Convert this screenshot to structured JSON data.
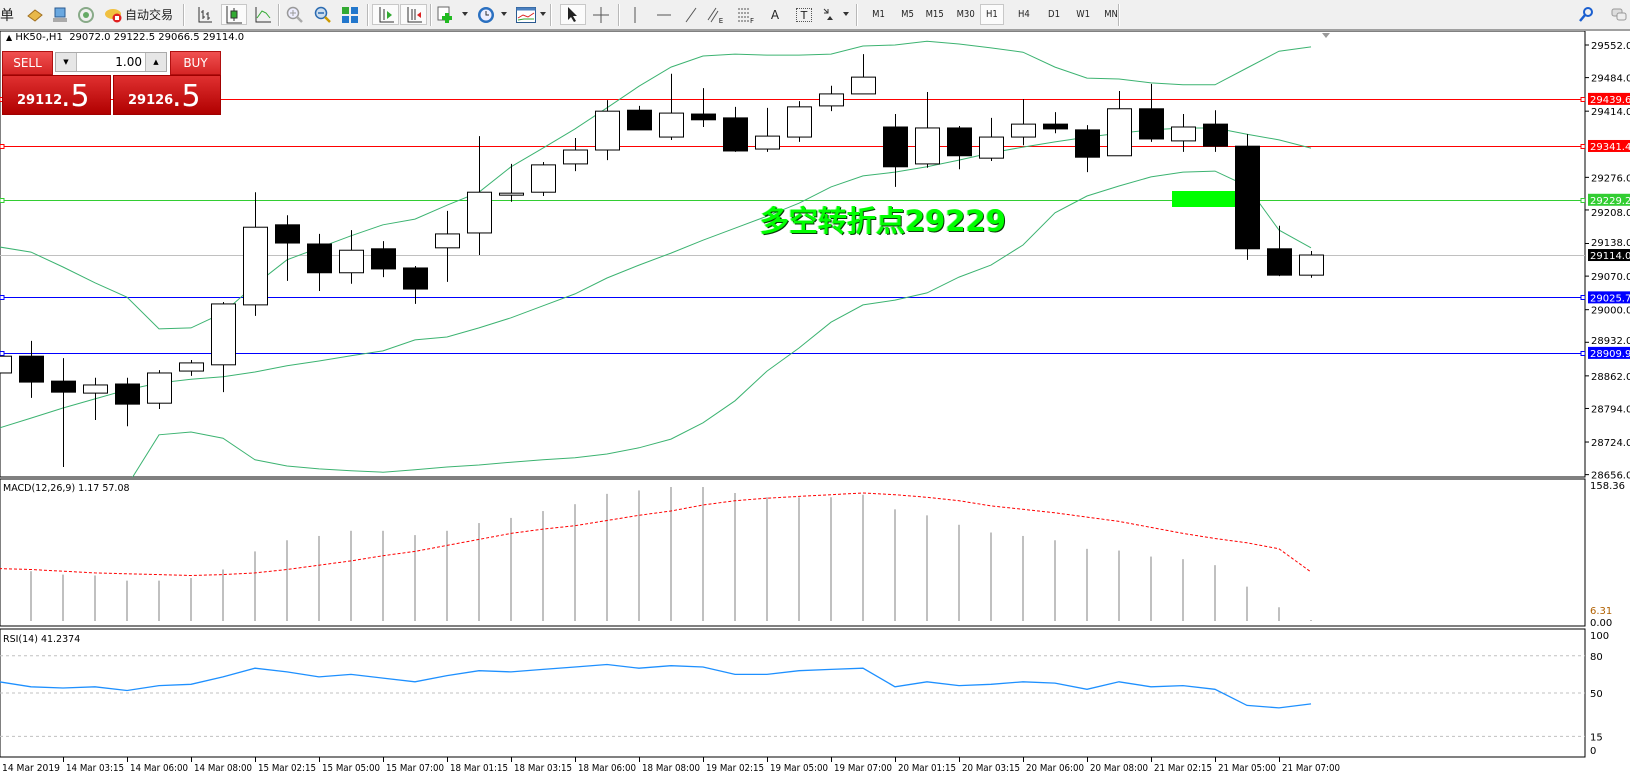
{
  "toolbar": {
    "partial_label": "单",
    "autotrade_label": "自动交易",
    "text_tool": "A",
    "label_tool": "T",
    "fibo_e": "E",
    "fibo_f": "F",
    "timeframes": [
      "M1",
      "M5",
      "M15",
      "M30",
      "H1",
      "H4",
      "D1",
      "W1",
      "MN"
    ],
    "active_timeframe": "H1"
  },
  "chart_info": {
    "symbol": "HK50-,H1",
    "ohlc": "29072.0 29122.5 29066.5 29114.0"
  },
  "trade_panel": {
    "sell_label": "SELL",
    "buy_label": "BUY",
    "lot": "1.00",
    "sell_price_main": "29112",
    "sell_price_frac": ".5",
    "buy_price_main": "29126",
    "buy_price_frac": ".5",
    "color": "#d52525"
  },
  "annotation": {
    "text": "多空转折点29229",
    "color": "#00ff00",
    "marker_color": "#00ff00"
  },
  "chart_data": [
    {
      "type": "candlestick",
      "ylim": [
        28656.0,
        29552.0
      ],
      "price_ticks": [
        "29552.0",
        "29484.0",
        "29414.0",
        "29276.0",
        "29208.0",
        "29138.0",
        "29070.0",
        "29000.0",
        "28932.0",
        "28862.0",
        "28794.0",
        "28724.0",
        "28656.0"
      ],
      "time_labels": [
        "14 Mar 2019",
        "14 Mar 03:15",
        "14 Mar 06:00",
        "14 Mar 08:00",
        "15 Mar 02:15",
        "15 Mar 05:00",
        "15 Mar 07:00",
        "18 Mar 01:15",
        "18 Mar 03:15",
        "18 Mar 06:00",
        "18 Mar 08:00",
        "19 Mar 02:15",
        "19 Mar 05:00",
        "19 Mar 07:00",
        "20 Mar 01:15",
        "20 Mar 03:15",
        "20 Mar 06:00",
        "20 Mar 08:00",
        "21 Mar 02:15",
        "21 Mar 05:00",
        "21 Mar 07:00"
      ],
      "ohlc": [
        [
          28868,
          28903,
          28868,
          28903
        ],
        [
          28903,
          28935,
          28816,
          28849
        ],
        [
          28851,
          28899,
          28672,
          28828
        ],
        [
          28826,
          28858,
          28770,
          28843
        ],
        [
          28845,
          28858,
          28757,
          28803
        ],
        [
          28805,
          28874,
          28793,
          28868
        ],
        [
          28872,
          28895,
          28862,
          28889
        ],
        [
          28885,
          29016,
          28828,
          29012
        ],
        [
          29010,
          29245,
          28987,
          29172
        ],
        [
          29177,
          29197,
          29060,
          29139
        ],
        [
          29137,
          29158,
          29039,
          29077
        ],
        [
          29077,
          29166,
          29054,
          29124
        ],
        [
          29127,
          29143,
          29068,
          29085
        ],
        [
          29087,
          29091,
          29012,
          29043
        ],
        [
          29129,
          29206,
          29058,
          29158
        ],
        [
          29160,
          29362,
          29114,
          29245
        ],
        [
          29241,
          29304,
          29225,
          29243
        ],
        [
          29245,
          29308,
          29237,
          29302
        ],
        [
          29304,
          29358,
          29289,
          29333
        ],
        [
          29333,
          29437,
          29312,
          29414
        ],
        [
          29416,
          29425,
          29375,
          29375
        ],
        [
          29360,
          29492,
          29354,
          29410
        ],
        [
          29408,
          29462,
          29381,
          29396
        ],
        [
          29400,
          29423,
          29329,
          29331
        ],
        [
          29335,
          29421,
          29329,
          29362
        ],
        [
          29360,
          29435,
          29350,
          29423
        ],
        [
          29425,
          29467,
          29414,
          29450
        ],
        [
          29450,
          29533,
          29450,
          29485
        ],
        [
          29381,
          29408,
          29256,
          29298
        ],
        [
          29304,
          29454,
          29296,
          29379
        ],
        [
          29379,
          29383,
          29293,
          29321
        ],
        [
          29316,
          29400,
          29310,
          29360
        ],
        [
          29360,
          29439,
          29343,
          29387
        ],
        [
          29387,
          29412,
          29368,
          29377
        ],
        [
          29375,
          29385,
          29287,
          29318
        ],
        [
          29321,
          29456,
          29321,
          29419
        ],
        [
          29419,
          29471,
          29350,
          29356
        ],
        [
          29352,
          29408,
          29329,
          29381
        ],
        [
          29387,
          29416,
          29329,
          29341
        ],
        [
          29341,
          29366,
          29104,
          29127
        ],
        [
          29127,
          29175,
          29070,
          29072
        ],
        [
          29072.0,
          29122.5,
          29066.5,
          29114.0
        ]
      ],
      "bollinger": {
        "color": "#3cb371",
        "upper": [
          29131,
          29120,
          29089,
          29056,
          29026,
          28960,
          28962,
          28993,
          29052,
          29104,
          29129,
          29154,
          29177,
          29189,
          29218,
          29245,
          29298,
          29337,
          29377,
          29421,
          29466,
          29506,
          29529,
          29533,
          29531,
          29531,
          29533,
          29550,
          29552,
          29560,
          29554,
          29546,
          29537,
          29506,
          29483,
          29481,
          29473,
          29469,
          29469,
          29504,
          29539,
          29548
        ],
        "middle": [
          28753,
          28774,
          28795,
          28814,
          28833,
          28847,
          28855,
          28860,
          28870,
          28883,
          28893,
          28904,
          28914,
          28937,
          28943,
          28962,
          28983,
          29008,
          29033,
          29066,
          29093,
          29118,
          29145,
          29170,
          29195,
          29222,
          29256,
          29279,
          29287,
          29298,
          29312,
          29327,
          29339,
          29350,
          29360,
          29368,
          29375,
          29379,
          29379,
          29366,
          29354,
          29337
        ],
        "lower": [
          28561,
          28582,
          28603,
          28624,
          28632,
          28739,
          28745,
          28732,
          28687,
          28674,
          28668,
          28664,
          28661,
          28666,
          28672,
          28676,
          28682,
          28687,
          28691,
          28699,
          28712,
          28730,
          28764,
          28810,
          28872,
          28920,
          28974,
          29010,
          29020,
          29035,
          29068,
          29093,
          29135,
          29202,
          29237,
          29258,
          29277,
          29287,
          29289,
          29258,
          29166,
          29129
        ]
      },
      "hlines": [
        {
          "price": 29439.6,
          "label": "29439.6",
          "color": "#ff0000"
        },
        {
          "price": 29341.4,
          "label": "29341.4",
          "color": "#ff0000"
        },
        {
          "price": 29229.2,
          "label": "29229.2",
          "color": "#32cd32"
        },
        {
          "price": 29114.0,
          "label": "29114.0",
          "color": "#000000",
          "line_color": "#c0c0c0"
        },
        {
          "price": 29025.7,
          "label": "29025.7",
          "color": "#0000ff"
        },
        {
          "price": 28909.9,
          "label": "28909.9",
          "color": "#0000ff"
        }
      ]
    },
    {
      "type": "bar",
      "label": "MACD(12,26,9) 1.17 57.08",
      "ylim": [
        0,
        158.36
      ],
      "axis_max_label": "158.36",
      "axis_min_labels": [
        "0.00",
        "6.31"
      ],
      "histogram_color": "#c0c0c0",
      "signal_color": "#ff0000",
      "histogram": [
        null,
        58,
        54,
        53,
        47,
        47,
        50,
        60,
        81,
        94,
        99,
        105,
        105,
        100,
        105,
        114,
        120,
        128,
        136,
        148,
        152,
        156,
        156,
        149,
        144,
        144,
        144,
        147,
        130,
        123,
        112,
        103,
        99,
        94,
        84,
        82,
        75,
        72,
        65,
        40,
        16,
        1.17
      ],
      "signal": [
        61,
        60,
        58,
        56,
        55,
        54,
        53,
        54,
        56,
        60,
        65,
        70,
        76,
        81,
        88,
        95,
        102,
        107,
        111,
        117,
        123,
        128,
        135,
        140,
        143,
        145,
        147,
        149,
        147,
        144,
        140,
        134,
        130,
        126,
        121,
        116,
        109,
        102,
        96,
        91,
        84,
        57.08
      ]
    },
    {
      "type": "line",
      "label": "RSI(14) 41.2374",
      "ylim": [
        0,
        100
      ],
      "levels": [
        80,
        50,
        15
      ],
      "axis_labels": [
        "100",
        "80",
        "50",
        "15",
        "0"
      ],
      "color": "#1e90ff",
      "values": [
        59,
        55,
        54,
        55,
        52,
        56,
        57,
        63,
        70,
        67,
        63,
        65,
        62,
        59,
        64,
        68,
        67,
        69,
        71,
        73,
        70,
        72,
        71,
        65,
        65,
        68,
        69,
        70,
        55,
        59,
        56,
        57,
        59,
        58,
        53,
        59,
        55,
        56,
        53,
        40,
        38,
        41.24
      ]
    }
  ]
}
